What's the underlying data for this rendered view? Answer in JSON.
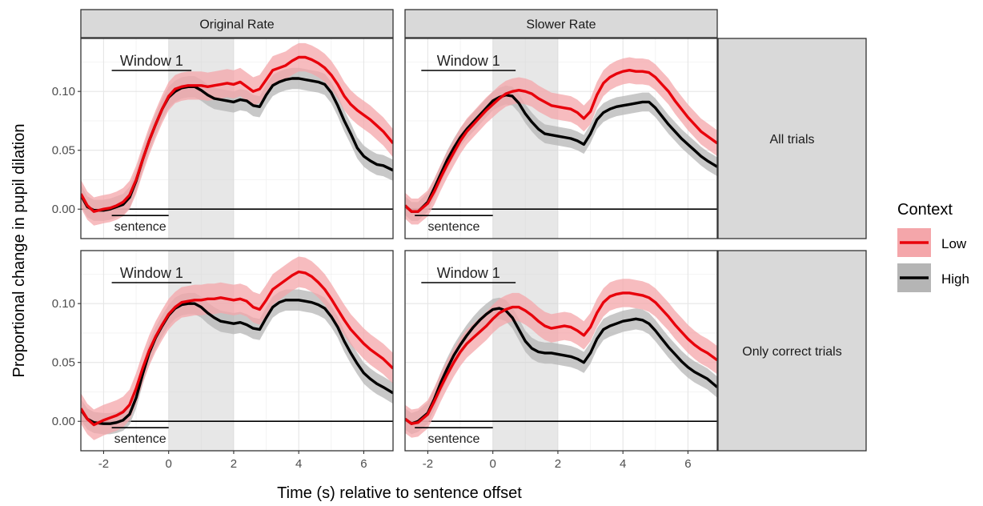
{
  "y_axis_label": "Proportional change in pupil dilation",
  "x_axis_label": "Time (s) relative to sentence offset",
  "window_label": "Window 1",
  "sentence_label": "sentence",
  "legend": {
    "title": "Context",
    "items": [
      {
        "label": "Low",
        "color": "#e8000b",
        "band_color": "#f4a6aa"
      },
      {
        "label": "High",
        "color": "#000000",
        "band_color": "#b5b5b5"
      }
    ]
  },
  "chart_data": [
    {
      "type": "line",
      "col_strip": "Original Rate",
      "row_strip": "All trials",
      "xlim": [
        -2.7,
        6.9
      ],
      "ylim": [
        -0.025,
        0.145
      ],
      "x_ticks": [
        -2,
        0,
        2,
        4,
        6
      ],
      "x_tick_labels": [
        "-2",
        "0",
        "2",
        "4",
        "6"
      ],
      "y_ticks": [
        0.0,
        0.05,
        0.1
      ],
      "y_tick_labels": [
        "0.00",
        "0.05",
        "0.10"
      ],
      "shaded_window": [
        0,
        2
      ],
      "window_marker": [
        -1.75,
        0.7
      ],
      "sentence_marker": [
        -1.75,
        0
      ],
      "grid": true,
      "series": [
        {
          "name": "Low",
          "band": 0.012,
          "x": [
            -2.7,
            -2.5,
            -2.3,
            -2.0,
            -1.8,
            -1.6,
            -1.4,
            -1.2,
            -1.0,
            -0.8,
            -0.6,
            -0.4,
            -0.2,
            0.0,
            0.2,
            0.4,
            0.6,
            0.8,
            1.0,
            1.2,
            1.4,
            1.6,
            1.8,
            2.0,
            2.2,
            2.4,
            2.6,
            2.8,
            3.0,
            3.2,
            3.4,
            3.6,
            3.8,
            4.0,
            4.2,
            4.4,
            4.6,
            4.8,
            5.0,
            5.2,
            5.4,
            5.6,
            5.8,
            6.0,
            6.2,
            6.4,
            6.6,
            6.9
          ],
          "y": [
            0.013,
            0.003,
            -0.002,
            0.0,
            0.001,
            0.003,
            0.006,
            0.012,
            0.025,
            0.042,
            0.058,
            0.072,
            0.085,
            0.096,
            0.102,
            0.104,
            0.105,
            0.105,
            0.105,
            0.104,
            0.105,
            0.106,
            0.107,
            0.106,
            0.108,
            0.104,
            0.1,
            0.102,
            0.11,
            0.118,
            0.12,
            0.122,
            0.126,
            0.129,
            0.129,
            0.127,
            0.124,
            0.12,
            0.114,
            0.106,
            0.096,
            0.089,
            0.084,
            0.08,
            0.076,
            0.071,
            0.066,
            0.056
          ]
        },
        {
          "name": "High",
          "band": 0.009,
          "x": [
            -2.7,
            -2.5,
            -2.3,
            -2.0,
            -1.8,
            -1.6,
            -1.4,
            -1.2,
            -1.0,
            -0.8,
            -0.6,
            -0.4,
            -0.2,
            0.0,
            0.2,
            0.4,
            0.6,
            0.8,
            1.0,
            1.2,
            1.4,
            1.6,
            1.8,
            2.0,
            2.2,
            2.4,
            2.6,
            2.8,
            3.0,
            3.2,
            3.4,
            3.6,
            3.8,
            4.0,
            4.2,
            4.4,
            4.6,
            4.8,
            5.0,
            5.2,
            5.4,
            5.6,
            5.8,
            6.0,
            6.2,
            6.4,
            6.6,
            6.9
          ],
          "y": [
            0.012,
            0.002,
            -0.001,
            -0.001,
            0.0,
            0.002,
            0.004,
            0.01,
            0.024,
            0.042,
            0.058,
            0.072,
            0.085,
            0.095,
            0.1,
            0.103,
            0.104,
            0.104,
            0.101,
            0.097,
            0.094,
            0.093,
            0.092,
            0.091,
            0.093,
            0.092,
            0.088,
            0.087,
            0.097,
            0.105,
            0.108,
            0.11,
            0.111,
            0.111,
            0.11,
            0.109,
            0.108,
            0.106,
            0.099,
            0.088,
            0.075,
            0.064,
            0.052,
            0.045,
            0.041,
            0.038,
            0.037,
            0.033
          ]
        }
      ]
    },
    {
      "type": "line",
      "col_strip": "Slower Rate",
      "row_strip": "All trials",
      "xlim": [
        -2.7,
        6.9
      ],
      "ylim": [
        -0.025,
        0.145
      ],
      "x_ticks": [
        -2,
        0,
        2,
        4,
        6
      ],
      "x_tick_labels": [
        "-2",
        "0",
        "2",
        "4",
        "6"
      ],
      "y_ticks": [
        0.0,
        0.05,
        0.1
      ],
      "y_tick_labels": [
        "0.00",
        "0.05",
        "0.10"
      ],
      "shaded_window": [
        0,
        2
      ],
      "window_marker": [
        -2.2,
        0.7
      ],
      "sentence_marker": [
        -2.4,
        0
      ],
      "grid": true,
      "series": [
        {
          "name": "Low",
          "band": 0.011,
          "x": [
            -2.7,
            -2.5,
            -2.3,
            -2.0,
            -1.8,
            -1.6,
            -1.4,
            -1.2,
            -1.0,
            -0.8,
            -0.6,
            -0.4,
            -0.2,
            0.0,
            0.2,
            0.4,
            0.6,
            0.8,
            1.0,
            1.2,
            1.4,
            1.6,
            1.8,
            2.0,
            2.2,
            2.4,
            2.6,
            2.8,
            3.0,
            3.2,
            3.4,
            3.6,
            3.8,
            4.0,
            4.2,
            4.4,
            4.6,
            4.8,
            5.0,
            5.2,
            5.4,
            5.6,
            5.8,
            6.0,
            6.2,
            6.4,
            6.6,
            6.9
          ],
          "y": [
            0.003,
            -0.002,
            -0.002,
            0.005,
            0.015,
            0.027,
            0.038,
            0.048,
            0.058,
            0.066,
            0.072,
            0.078,
            0.084,
            0.089,
            0.094,
            0.098,
            0.1,
            0.101,
            0.1,
            0.098,
            0.094,
            0.091,
            0.088,
            0.087,
            0.086,
            0.085,
            0.082,
            0.077,
            0.083,
            0.097,
            0.107,
            0.112,
            0.115,
            0.117,
            0.118,
            0.117,
            0.117,
            0.116,
            0.112,
            0.106,
            0.1,
            0.092,
            0.085,
            0.078,
            0.072,
            0.066,
            0.062,
            0.056
          ]
        },
        {
          "name": "High",
          "band": 0.008,
          "x": [
            -2.7,
            -2.5,
            -2.3,
            -2.0,
            -1.8,
            -1.6,
            -1.4,
            -1.2,
            -1.0,
            -0.8,
            -0.6,
            -0.4,
            -0.2,
            0.0,
            0.2,
            0.4,
            0.6,
            0.8,
            1.0,
            1.2,
            1.4,
            1.6,
            1.8,
            2.0,
            2.2,
            2.4,
            2.6,
            2.8,
            3.0,
            3.2,
            3.4,
            3.6,
            3.8,
            4.0,
            4.2,
            4.4,
            4.6,
            4.8,
            5.0,
            5.2,
            5.4,
            5.6,
            5.8,
            6.0,
            6.2,
            6.4,
            6.6,
            6.9
          ],
          "y": [
            0.003,
            -0.002,
            -0.002,
            0.006,
            0.018,
            0.03,
            0.042,
            0.052,
            0.061,
            0.068,
            0.074,
            0.08,
            0.086,
            0.092,
            0.095,
            0.097,
            0.096,
            0.09,
            0.081,
            0.074,
            0.068,
            0.064,
            0.063,
            0.062,
            0.061,
            0.06,
            0.058,
            0.055,
            0.064,
            0.076,
            0.082,
            0.085,
            0.087,
            0.088,
            0.089,
            0.09,
            0.091,
            0.091,
            0.086,
            0.079,
            0.072,
            0.066,
            0.06,
            0.055,
            0.05,
            0.045,
            0.041,
            0.036
          ]
        }
      ]
    },
    {
      "type": "line",
      "col_strip": "Original Rate",
      "row_strip": "Only correct trials",
      "xlim": [
        -2.7,
        6.9
      ],
      "ylim": [
        -0.025,
        0.145
      ],
      "x_ticks": [
        -2,
        0,
        2,
        4,
        6
      ],
      "x_tick_labels": [
        "-2",
        "0",
        "2",
        "4",
        "6"
      ],
      "y_ticks": [
        0.0,
        0.05,
        0.1
      ],
      "y_tick_labels": [
        "0.00",
        "0.05",
        "0.10"
      ],
      "shaded_window": [
        0,
        2
      ],
      "window_marker": [
        -1.75,
        0.7
      ],
      "sentence_marker": [
        -1.75,
        0
      ],
      "grid": true,
      "series": [
        {
          "name": "Low",
          "band": 0.013,
          "x": [
            -2.7,
            -2.5,
            -2.3,
            -2.0,
            -1.8,
            -1.6,
            -1.4,
            -1.2,
            -1.0,
            -0.8,
            -0.6,
            -0.4,
            -0.2,
            0.0,
            0.2,
            0.4,
            0.6,
            0.8,
            1.0,
            1.2,
            1.4,
            1.6,
            1.8,
            2.0,
            2.2,
            2.4,
            2.6,
            2.8,
            3.0,
            3.2,
            3.4,
            3.6,
            3.8,
            4.0,
            4.2,
            4.4,
            4.6,
            4.8,
            5.0,
            5.2,
            5.4,
            5.6,
            5.8,
            6.0,
            6.2,
            6.4,
            6.6,
            6.9
          ],
          "y": [
            0.011,
            0.002,
            -0.003,
            0.001,
            0.003,
            0.005,
            0.008,
            0.014,
            0.028,
            0.045,
            0.06,
            0.072,
            0.082,
            0.091,
            0.097,
            0.101,
            0.102,
            0.103,
            0.103,
            0.104,
            0.104,
            0.105,
            0.104,
            0.103,
            0.104,
            0.102,
            0.097,
            0.095,
            0.103,
            0.112,
            0.116,
            0.12,
            0.124,
            0.127,
            0.126,
            0.123,
            0.118,
            0.112,
            0.104,
            0.095,
            0.086,
            0.078,
            0.072,
            0.066,
            0.061,
            0.057,
            0.053,
            0.045
          ]
        },
        {
          "name": "High",
          "band": 0.009,
          "x": [
            -2.7,
            -2.5,
            -2.3,
            -2.0,
            -1.8,
            -1.6,
            -1.4,
            -1.2,
            -1.0,
            -0.8,
            -0.6,
            -0.4,
            -0.2,
            0.0,
            0.2,
            0.4,
            0.6,
            0.8,
            1.0,
            1.2,
            1.4,
            1.6,
            1.8,
            2.0,
            2.2,
            2.4,
            2.6,
            2.8,
            3.0,
            3.2,
            3.4,
            3.6,
            3.8,
            4.0,
            4.2,
            4.4,
            4.6,
            4.8,
            5.0,
            5.2,
            5.4,
            5.6,
            5.8,
            6.0,
            6.2,
            6.4,
            6.6,
            6.9
          ],
          "y": [
            0.01,
            0.002,
            -0.001,
            -0.002,
            -0.002,
            -0.001,
            0.001,
            0.006,
            0.02,
            0.04,
            0.058,
            0.071,
            0.081,
            0.09,
            0.096,
            0.099,
            0.1,
            0.1,
            0.097,
            0.092,
            0.088,
            0.085,
            0.084,
            0.083,
            0.084,
            0.082,
            0.079,
            0.078,
            0.088,
            0.097,
            0.101,
            0.103,
            0.103,
            0.103,
            0.102,
            0.101,
            0.099,
            0.096,
            0.089,
            0.08,
            0.068,
            0.058,
            0.049,
            0.041,
            0.036,
            0.032,
            0.029,
            0.024
          ]
        }
      ]
    },
    {
      "type": "line",
      "col_strip": "Slower Rate",
      "row_strip": "Only correct trials",
      "xlim": [
        -2.7,
        6.9
      ],
      "ylim": [
        -0.025,
        0.145
      ],
      "x_ticks": [
        -2,
        0,
        2,
        4,
        6
      ],
      "x_tick_labels": [
        "-2",
        "0",
        "2",
        "4",
        "6"
      ],
      "y_ticks": [
        0.0,
        0.05,
        0.1
      ],
      "y_tick_labels": [
        "0.00",
        "0.05",
        "0.10"
      ],
      "shaded_window": [
        0,
        2
      ],
      "window_marker": [
        -2.2,
        0.7
      ],
      "sentence_marker": [
        -2.4,
        0
      ],
      "grid": true,
      "series": [
        {
          "name": "Low",
          "band": 0.012,
          "x": [
            -2.7,
            -2.5,
            -2.3,
            -2.0,
            -1.8,
            -1.6,
            -1.4,
            -1.2,
            -1.0,
            -0.8,
            -0.6,
            -0.4,
            -0.2,
            0.0,
            0.2,
            0.4,
            0.6,
            0.8,
            1.0,
            1.2,
            1.4,
            1.6,
            1.8,
            2.0,
            2.2,
            2.4,
            2.6,
            2.8,
            3.0,
            3.2,
            3.4,
            3.6,
            3.8,
            4.0,
            4.2,
            4.4,
            4.6,
            4.8,
            5.0,
            5.2,
            5.4,
            5.6,
            5.8,
            6.0,
            6.2,
            6.4,
            6.6,
            6.9
          ],
          "y": [
            0.002,
            -0.002,
            -0.001,
            0.006,
            0.017,
            0.029,
            0.04,
            0.05,
            0.059,
            0.066,
            0.071,
            0.076,
            0.081,
            0.087,
            0.092,
            0.095,
            0.097,
            0.097,
            0.094,
            0.09,
            0.085,
            0.081,
            0.079,
            0.08,
            0.081,
            0.08,
            0.077,
            0.073,
            0.08,
            0.092,
            0.101,
            0.106,
            0.108,
            0.109,
            0.109,
            0.108,
            0.107,
            0.105,
            0.101,
            0.095,
            0.089,
            0.082,
            0.076,
            0.07,
            0.065,
            0.061,
            0.058,
            0.052
          ]
        },
        {
          "name": "High",
          "band": 0.009,
          "x": [
            -2.7,
            -2.5,
            -2.3,
            -2.0,
            -1.8,
            -1.6,
            -1.4,
            -1.2,
            -1.0,
            -0.8,
            -0.6,
            -0.4,
            -0.2,
            0.0,
            0.2,
            0.4,
            0.6,
            0.8,
            1.0,
            1.2,
            1.4,
            1.6,
            1.8,
            2.0,
            2.2,
            2.4,
            2.6,
            2.8,
            3.0,
            3.2,
            3.4,
            3.6,
            3.8,
            4.0,
            4.2,
            4.4,
            4.6,
            4.8,
            5.0,
            5.2,
            5.4,
            5.6,
            5.8,
            6.0,
            6.2,
            6.4,
            6.6,
            6.9
          ],
          "y": [
            0.002,
            -0.002,
            0.0,
            0.007,
            0.019,
            0.033,
            0.045,
            0.056,
            0.065,
            0.073,
            0.08,
            0.086,
            0.091,
            0.095,
            0.096,
            0.094,
            0.088,
            0.078,
            0.068,
            0.062,
            0.059,
            0.058,
            0.058,
            0.057,
            0.056,
            0.055,
            0.053,
            0.05,
            0.058,
            0.07,
            0.078,
            0.081,
            0.083,
            0.085,
            0.086,
            0.087,
            0.086,
            0.083,
            0.077,
            0.07,
            0.063,
            0.057,
            0.051,
            0.046,
            0.042,
            0.039,
            0.036,
            0.029
          ]
        }
      ]
    }
  ]
}
